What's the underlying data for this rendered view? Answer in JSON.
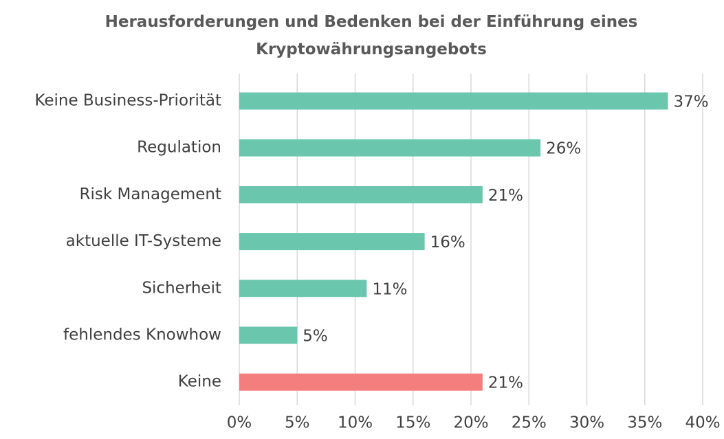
{
  "chart_data": {
    "type": "barh",
    "title": "Herausforderungen und Bedenken bei der Einführung eines Kryptowährungsangebots",
    "categories": [
      "Keine Business-Priorität",
      "Regulation",
      "Risk Management",
      "aktuelle IT-Systeme",
      "Sicherheit",
      "fehlendes Knowhow",
      "Keine"
    ],
    "values": [
      37,
      26,
      21,
      16,
      11,
      5,
      21
    ],
    "value_labels": [
      "37%",
      "26%",
      "21%",
      "16%",
      "11%",
      "5%",
      "21%"
    ],
    "colors": [
      "#6ac6ac",
      "#6ac6ac",
      "#6ac6ac",
      "#6ac6ac",
      "#6ac6ac",
      "#6ac6ac",
      "#f47e7e"
    ],
    "xlim": [
      0,
      40
    ],
    "xticks": [
      {
        "value": 0,
        "label": "0%"
      },
      {
        "value": 5,
        "label": "5%"
      },
      {
        "value": 10,
        "label": "10%"
      },
      {
        "value": 15,
        "label": "15%"
      },
      {
        "value": 20,
        "label": "20%"
      },
      {
        "value": 25,
        "label": "25%"
      },
      {
        "value": 30,
        "label": "30%"
      },
      {
        "value": 35,
        "label": "35%"
      },
      {
        "value": 40,
        "label": "40%"
      }
    ],
    "grid": true
  }
}
